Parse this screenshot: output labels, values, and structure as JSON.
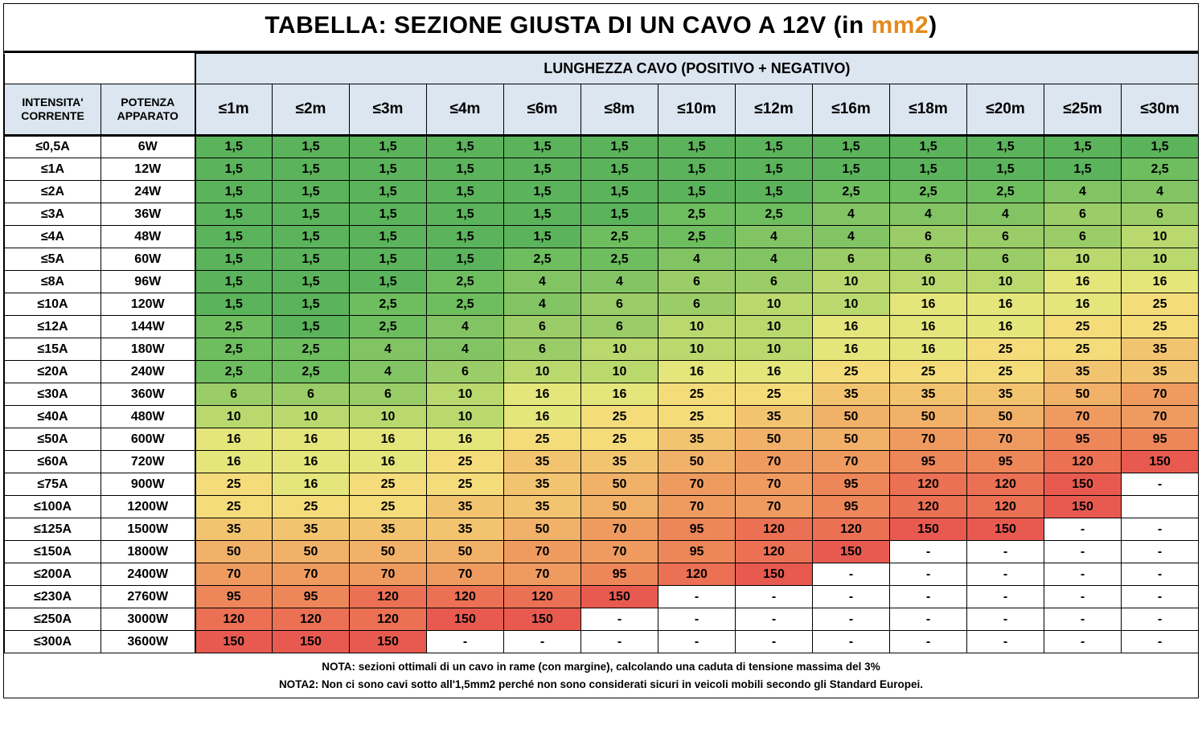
{
  "title_prefix": "TABELLA: SEZIONE GIUSTA DI UN CAVO A 12V (in ",
  "title_unit": "mm2",
  "title_suffix": ")",
  "unit_color": "#e58a1a",
  "header_group": "LUNGHEZZA CAVO (POSITIVO + NEGATIVO)",
  "col1_header": "INTENSITA' CORRENTE",
  "col2_header": "POTENZA APPARATO",
  "length_headers": [
    "≤1m",
    "≤2m",
    "≤3m",
    "≤4m",
    "≤6m",
    "≤8m",
    "≤10m",
    "≤12m",
    "≤16m",
    "≤18m",
    "≤20m",
    "≤25m",
    "≤30m"
  ],
  "rows": [
    {
      "amp": "≤0,5A",
      "watt": "6W",
      "cells": [
        "1,5",
        "1,5",
        "1,5",
        "1,5",
        "1,5",
        "1,5",
        "1,5",
        "1,5",
        "1,5",
        "1,5",
        "1,5",
        "1,5",
        "1,5"
      ]
    },
    {
      "amp": "≤1A",
      "watt": "12W",
      "cells": [
        "1,5",
        "1,5",
        "1,5",
        "1,5",
        "1,5",
        "1,5",
        "1,5",
        "1,5",
        "1,5",
        "1,5",
        "1,5",
        "1,5",
        "2,5"
      ]
    },
    {
      "amp": "≤2A",
      "watt": "24W",
      "cells": [
        "1,5",
        "1,5",
        "1,5",
        "1,5",
        "1,5",
        "1,5",
        "1,5",
        "1,5",
        "2,5",
        "2,5",
        "2,5",
        "4",
        "4"
      ]
    },
    {
      "amp": "≤3A",
      "watt": "36W",
      "cells": [
        "1,5",
        "1,5",
        "1,5",
        "1,5",
        "1,5",
        "1,5",
        "2,5",
        "2,5",
        "4",
        "4",
        "4",
        "6",
        "6"
      ]
    },
    {
      "amp": "≤4A",
      "watt": "48W",
      "cells": [
        "1,5",
        "1,5",
        "1,5",
        "1,5",
        "1,5",
        "2,5",
        "2,5",
        "4",
        "4",
        "6",
        "6",
        "6",
        "10"
      ]
    },
    {
      "amp": "≤5A",
      "watt": "60W",
      "cells": [
        "1,5",
        "1,5",
        "1,5",
        "1,5",
        "2,5",
        "2,5",
        "4",
        "4",
        "6",
        "6",
        "6",
        "10",
        "10"
      ]
    },
    {
      "amp": "≤8A",
      "watt": "96W",
      "cells": [
        "1,5",
        "1,5",
        "1,5",
        "2,5",
        "4",
        "4",
        "6",
        "6",
        "10",
        "10",
        "10",
        "16",
        "16"
      ]
    },
    {
      "amp": "≤10A",
      "watt": "120W",
      "cells": [
        "1,5",
        "1,5",
        "2,5",
        "2,5",
        "4",
        "6",
        "6",
        "10",
        "10",
        "16",
        "16",
        "16",
        "25"
      ]
    },
    {
      "amp": "≤12A",
      "watt": "144W",
      "cells": [
        "2,5",
        "1,5",
        "2,5",
        "4",
        "6",
        "6",
        "10",
        "10",
        "16",
        "16",
        "16",
        "25",
        "25"
      ]
    },
    {
      "amp": "≤15A",
      "watt": "180W",
      "cells": [
        "2,5",
        "2,5",
        "4",
        "4",
        "6",
        "10",
        "10",
        "10",
        "16",
        "16",
        "25",
        "25",
        "35"
      ]
    },
    {
      "amp": "≤20A",
      "watt": "240W",
      "cells": [
        "2,5",
        "2,5",
        "4",
        "6",
        "10",
        "10",
        "16",
        "16",
        "25",
        "25",
        "25",
        "35",
        "35"
      ]
    },
    {
      "amp": "≤30A",
      "watt": "360W",
      "cells": [
        "6",
        "6",
        "6",
        "10",
        "16",
        "16",
        "25",
        "25",
        "35",
        "35",
        "35",
        "50",
        "70"
      ]
    },
    {
      "amp": "≤40A",
      "watt": "480W",
      "cells": [
        "10",
        "10",
        "10",
        "10",
        "16",
        "25",
        "25",
        "35",
        "50",
        "50",
        "50",
        "70",
        "70"
      ]
    },
    {
      "amp": "≤50A",
      "watt": "600W",
      "cells": [
        "16",
        "16",
        "16",
        "16",
        "25",
        "25",
        "35",
        "50",
        "50",
        "70",
        "70",
        "95",
        "95"
      ]
    },
    {
      "amp": "≤60A",
      "watt": "720W",
      "cells": [
        "16",
        "16",
        "16",
        "25",
        "35",
        "35",
        "50",
        "70",
        "70",
        "95",
        "95",
        "120",
        "150"
      ]
    },
    {
      "amp": "≤75A",
      "watt": "900W",
      "cells": [
        "25",
        "16",
        "25",
        "25",
        "35",
        "50",
        "70",
        "70",
        "95",
        "120",
        "120",
        "150",
        "-"
      ]
    },
    {
      "amp": "≤100A",
      "watt": "1200W",
      "cells": [
        "25",
        "25",
        "25",
        "35",
        "35",
        "50",
        "70",
        "70",
        "95",
        "120",
        "120",
        "150",
        ""
      ]
    },
    {
      "amp": "≤125A",
      "watt": "1500W",
      "cells": [
        "35",
        "35",
        "35",
        "35",
        "50",
        "70",
        "95",
        "120",
        "120",
        "150",
        "150",
        "-",
        "-"
      ]
    },
    {
      "amp": "≤150A",
      "watt": "1800W",
      "cells": [
        "50",
        "50",
        "50",
        "50",
        "70",
        "70",
        "95",
        "120",
        "150",
        "-",
        "-",
        "-",
        "-"
      ]
    },
    {
      "amp": "≤200A",
      "watt": "2400W",
      "cells": [
        "70",
        "70",
        "70",
        "70",
        "70",
        "95",
        "120",
        "150",
        "-",
        "-",
        "-",
        "-",
        "-"
      ]
    },
    {
      "amp": "≤230A",
      "watt": "2760W",
      "cells": [
        "95",
        "95",
        "120",
        "120",
        "120",
        "150",
        "-",
        "-",
        "-",
        "-",
        "-",
        "-",
        "-"
      ]
    },
    {
      "amp": "≤250A",
      "watt": "3000W",
      "cells": [
        "120",
        "120",
        "120",
        "150",
        "150",
        "-",
        "-",
        "-",
        "-",
        "-",
        "-",
        "-",
        "-"
      ]
    },
    {
      "amp": "≤300A",
      "watt": "3600W",
      "cells": [
        "150",
        "150",
        "150",
        "-",
        "-",
        "-",
        "-",
        "-",
        "-",
        "-",
        "-",
        "-",
        "-"
      ]
    }
  ],
  "color_map": {
    "1,5": "#5bb35b",
    "2,5": "#6ebd5f",
    "4": "#82c464",
    "6": "#9acc67",
    "10": "#b9d96f",
    "16": "#e4e57a",
    "25": "#f5dc7a",
    "35": "#f3c470",
    "50": "#f1b168",
    "70": "#ef9b60",
    "95": "#ed8659",
    "120": "#eb7054",
    "150": "#e85a50",
    "-": "#ffffff",
    "": "#ffffff"
  },
  "header_bg": "#dbe6f0",
  "note1": "NOTA: sezioni ottimali di un cavo in rame (con margine), calcolando una caduta di tensione massima del 3%",
  "note2": "NOTA2: Non ci sono cavi sotto all'1,5mm2 perché non sono considerati sicuri in veicoli mobili secondo gli Standard Europei."
}
